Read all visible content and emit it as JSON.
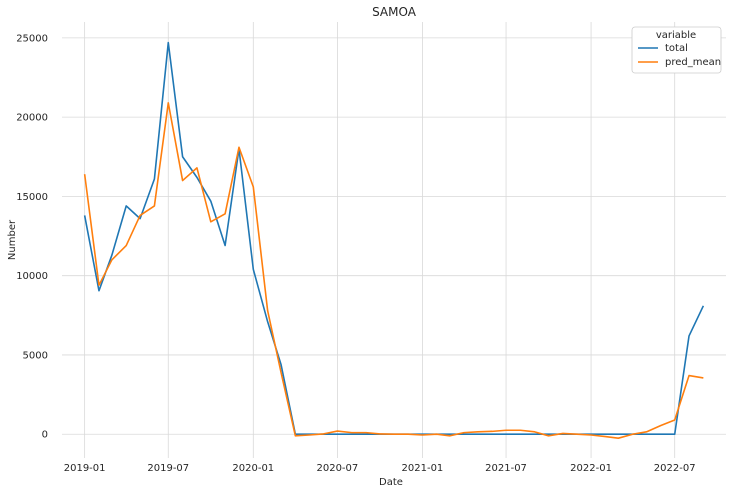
{
  "chart_data": {
    "type": "line",
    "title": "SAMOA",
    "xlabel": "Date",
    "ylabel": "Number",
    "grid": true,
    "legend": {
      "title": "variable",
      "placement": "top-right"
    },
    "x_ticks": [
      "2019-01",
      "2019-07",
      "2020-01",
      "2020-07",
      "2021-01",
      "2021-07",
      "2022-01",
      "2022-07"
    ],
    "y_ticks": [
      0,
      5000,
      10000,
      15000,
      20000,
      25000
    ],
    "xlim": [
      "2018-11-13",
      "2022-10-20"
    ],
    "ylim": [
      -1500,
      26000
    ],
    "x": [
      "2019-01",
      "2019-02",
      "2019-03",
      "2019-04",
      "2019-05",
      "2019-06",
      "2019-07",
      "2019-08",
      "2019-09",
      "2019-10",
      "2019-11",
      "2019-12",
      "2020-01",
      "2020-02",
      "2020-03",
      "2020-04",
      "2020-05",
      "2020-06",
      "2020-07",
      "2020-08",
      "2020-09",
      "2020-10",
      "2020-11",
      "2020-12",
      "2021-01",
      "2021-02",
      "2021-03",
      "2021-04",
      "2021-05",
      "2021-06",
      "2021-07",
      "2021-08",
      "2021-09",
      "2021-10",
      "2021-11",
      "2021-12",
      "2022-01",
      "2022-02",
      "2022-03",
      "2022-04",
      "2022-05",
      "2022-06",
      "2022-07",
      "2022-08",
      "2022-09"
    ],
    "series": [
      {
        "name": "total",
        "color": "#1f77b4",
        "values": [
          13800,
          9050,
          11300,
          14400,
          13600,
          16100,
          24700,
          17500,
          16200,
          14700,
          11900,
          18000,
          10400,
          7100,
          4400,
          0,
          0,
          0,
          0,
          0,
          0,
          0,
          0,
          0,
          0,
          0,
          0,
          0,
          0,
          0,
          0,
          0,
          0,
          0,
          0,
          0,
          0,
          0,
          0,
          0,
          0,
          0,
          0,
          6200,
          8100
        ]
      },
      {
        "name": "pred_mean",
        "color": "#ff7f0e",
        "values": [
          16400,
          9400,
          11000,
          11900,
          13800,
          14400,
          20900,
          16000,
          16800,
          13400,
          13900,
          18100,
          15600,
          7800,
          3900,
          -100,
          -50,
          20,
          200,
          100,
          100,
          20,
          0,
          0,
          -50,
          0,
          -100,
          100,
          150,
          180,
          250,
          250,
          150,
          -100,
          50,
          0,
          -50,
          -150,
          -250,
          0,
          150,
          550,
          900,
          3700,
          3550
        ]
      }
    ]
  }
}
